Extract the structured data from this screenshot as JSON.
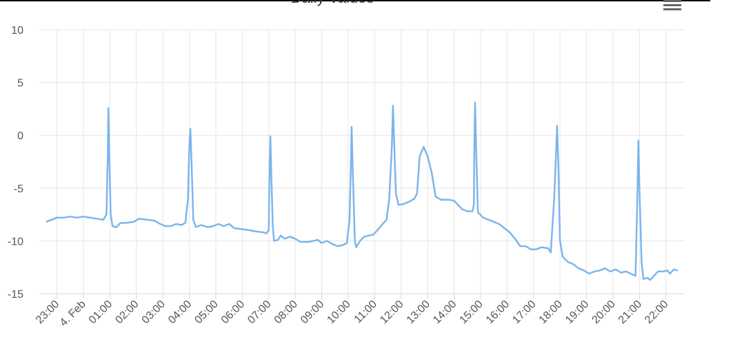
{
  "chart_data": {
    "type": "line",
    "title": "Daily Values",
    "x": [
      -1.41,
      -1.2,
      -1,
      -0.75,
      -0.5,
      -0.25,
      0,
      0.25,
      0.5,
      0.75,
      0.87,
      0.92,
      0.94,
      0.98,
      1.03,
      1.1,
      1.25,
      1.4,
      1.6,
      1.9,
      2.1,
      2.4,
      2.7,
      2.9,
      3.1,
      3.3,
      3.5,
      3.7,
      3.85,
      3.95,
      4.0,
      4.04,
      4.09,
      4.15,
      4.25,
      4.45,
      4.7,
      4.9,
      5.1,
      5.3,
      5.5,
      5.7,
      6.0,
      6.3,
      6.5,
      6.8,
      6.9,
      7.0,
      7.02,
      7.06,
      7.1,
      7.15,
      7.2,
      7.35,
      7.45,
      7.6,
      7.8,
      8.0,
      8.2,
      8.5,
      8.7,
      8.85,
      9.0,
      9.2,
      9.4,
      9.6,
      9.8,
      9.95,
      10.05,
      10.1,
      10.13,
      10.18,
      10.25,
      10.3,
      10.45,
      10.6,
      10.8,
      10.95,
      11.1,
      11.3,
      11.45,
      11.55,
      11.65,
      11.69,
      11.74,
      11.8,
      11.9,
      12.1,
      12.3,
      12.5,
      12.6,
      12.7,
      12.85,
      13.0,
      13.15,
      13.3,
      13.5,
      13.8,
      14.0,
      14.15,
      14.3,
      14.5,
      14.7,
      14.75,
      14.76,
      14.79,
      14.84,
      14.9,
      15.1,
      15.3,
      15.5,
      15.7,
      15.9,
      16.1,
      16.3,
      16.5,
      16.7,
      16.9,
      17.1,
      17.3,
      17.55,
      17.65,
      17.78,
      17.86,
      17.89,
      17.94,
      18.0,
      18.1,
      18.3,
      18.5,
      18.7,
      18.9,
      19.1,
      19.3,
      19.5,
      19.7,
      19.9,
      20.1,
      20.3,
      20.5,
      20.75,
      20.85,
      20.92,
      20.96,
      21.0,
      21.08,
      21.15,
      21.3,
      21.4,
      21.55,
      21.7,
      21.9,
      22.05,
      22.15,
      22.3,
      22.45
    ],
    "series": [
      {
        "color": "#7cb5ec",
        "values": [
          -8.2,
          -8.0,
          -7.8,
          -7.8,
          -7.7,
          -7.8,
          -7.7,
          -7.8,
          -7.9,
          -8.0,
          -7.5,
          -2,
          2.6,
          -2,
          -7.5,
          -8.6,
          -8.7,
          -8.3,
          -8.3,
          -8.2,
          -7.9,
          -8.0,
          -8.1,
          -8.4,
          -8.6,
          -8.6,
          -8.4,
          -8.5,
          -8.3,
          -6,
          -1,
          0.6,
          -3,
          -8.0,
          -8.7,
          -8.5,
          -8.7,
          -8.6,
          -8.4,
          -8.6,
          -8.4,
          -8.8,
          -8.9,
          -9.0,
          -9.1,
          -9.2,
          -9.3,
          -9.0,
          -5,
          -0.1,
          -4,
          -8.5,
          -10.0,
          -9.9,
          -9.5,
          -9.8,
          -9.6,
          -9.8,
          -10.1,
          -10.1,
          -10.0,
          -9.9,
          -10.2,
          -10.0,
          -10.3,
          -10.5,
          -10.4,
          -10.2,
          -8,
          -3,
          0.8,
          -4,
          -10,
          -10.6,
          -10.0,
          -9.6,
          -9.5,
          -9.4,
          -9.0,
          -8.4,
          -8.0,
          -6,
          -1,
          2.8,
          -1,
          -5.5,
          -6.6,
          -6.5,
          -6.3,
          -6.0,
          -5.5,
          -2,
          -1.1,
          -2.0,
          -3.5,
          -5.8,
          -6.1,
          -6.1,
          -6.2,
          -6.6,
          -7.0,
          -7.2,
          -7.2,
          -6.5,
          -2,
          3.1,
          -2,
          -7.3,
          -7.8,
          -8.0,
          -8.2,
          -8.4,
          -8.8,
          -9.2,
          -9.8,
          -10.5,
          -10.5,
          -10.8,
          -10.8,
          -10.6,
          -10.7,
          -11.1,
          -6,
          -1,
          0.9,
          -3,
          -10,
          -11.5,
          -12.0,
          -12.2,
          -12.6,
          -12.8,
          -13.1,
          -12.9,
          -12.8,
          -12.6,
          -12.9,
          -12.7,
          -13.0,
          -12.9,
          -13.2,
          -13.3,
          -6,
          -0.5,
          -5,
          -12,
          -13.6,
          -13.5,
          -13.7,
          -13.3,
          -12.9,
          -12.9,
          -12.8,
          -13.1,
          -12.7,
          -12.8
        ]
      }
    ],
    "xlim": [
      -1.64,
      22.71
    ],
    "xticks": [
      {
        "value": -1,
        "label": "23:00"
      },
      {
        "value": 0,
        "label": "4. Feb"
      },
      {
        "value": 1,
        "label": "01:00"
      },
      {
        "value": 2,
        "label": "02:00"
      },
      {
        "value": 3,
        "label": "03:00"
      },
      {
        "value": 4,
        "label": "04:00"
      },
      {
        "value": 5,
        "label": "05:00"
      },
      {
        "value": 6,
        "label": "06:00"
      },
      {
        "value": 7,
        "label": "07:00"
      },
      {
        "value": 8,
        "label": "08:00"
      },
      {
        "value": 9,
        "label": "09:00"
      },
      {
        "value": 10,
        "label": "10:00"
      },
      {
        "value": 11,
        "label": "11:00"
      },
      {
        "value": 12,
        "label": "12:00"
      },
      {
        "value": 13,
        "label": "13:00"
      },
      {
        "value": 14,
        "label": "14:00"
      },
      {
        "value": 15,
        "label": "15:00"
      },
      {
        "value": 16,
        "label": "16:00"
      },
      {
        "value": 17,
        "label": "17:00"
      },
      {
        "value": 18,
        "label": "18:00"
      },
      {
        "value": 19,
        "label": "19:00"
      },
      {
        "value": 20,
        "label": "20:00"
      },
      {
        "value": 21,
        "label": "21:00"
      },
      {
        "value": 22,
        "label": "22:00"
      }
    ],
    "ylim": [
      -15,
      10
    ],
    "yticks": [
      -15,
      -10,
      -5,
      0,
      5,
      10
    ],
    "grid": true
  }
}
